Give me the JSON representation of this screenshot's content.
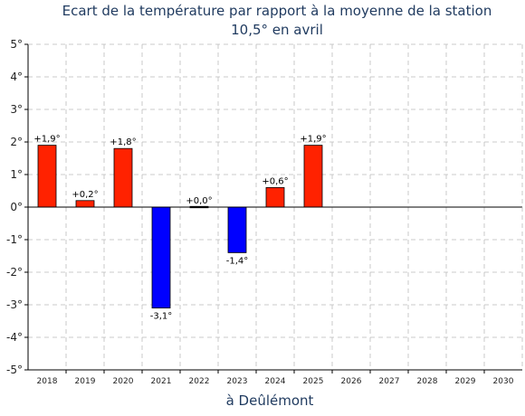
{
  "chart_data": {
    "type": "bar",
    "title_line1": "Ecart de la température par rapport à la moyenne de la station",
    "title_line2": "10,5° en avril",
    "xlabel": "à Deûlémont",
    "ylabel": "",
    "categories": [
      "2018",
      "2019",
      "2020",
      "2021",
      "2022",
      "2023",
      "2024",
      "2025",
      "2026",
      "2027",
      "2028",
      "2029",
      "2030"
    ],
    "values": [
      1.9,
      0.2,
      1.8,
      -3.1,
      0.0,
      -1.4,
      0.6,
      1.9,
      null,
      null,
      null,
      null,
      null
    ],
    "data_labels": [
      "+1,9°",
      "+0,2°",
      "+1,8°",
      "-3,1°",
      "+0,0°",
      "-1,4°",
      "+0,6°",
      "+1,9°",
      "",
      "",
      "",
      "",
      ""
    ],
    "ylim": [
      -5,
      5
    ],
    "yticks": [
      5,
      4,
      3,
      2,
      1,
      0,
      -1,
      -2,
      -3,
      -4,
      -5
    ],
    "ytick_labels": [
      "5°",
      "4°",
      "3°",
      "2°",
      "1°",
      "0°",
      "-1°",
      "-2°",
      "-3°",
      "-4°",
      "-5°"
    ],
    "grid": true,
    "colors": {
      "positive": "#ff2200",
      "negative": "#0000ff",
      "axis": "#000000",
      "grid": "#bbbbbb",
      "title": "#1f3a5f"
    }
  }
}
